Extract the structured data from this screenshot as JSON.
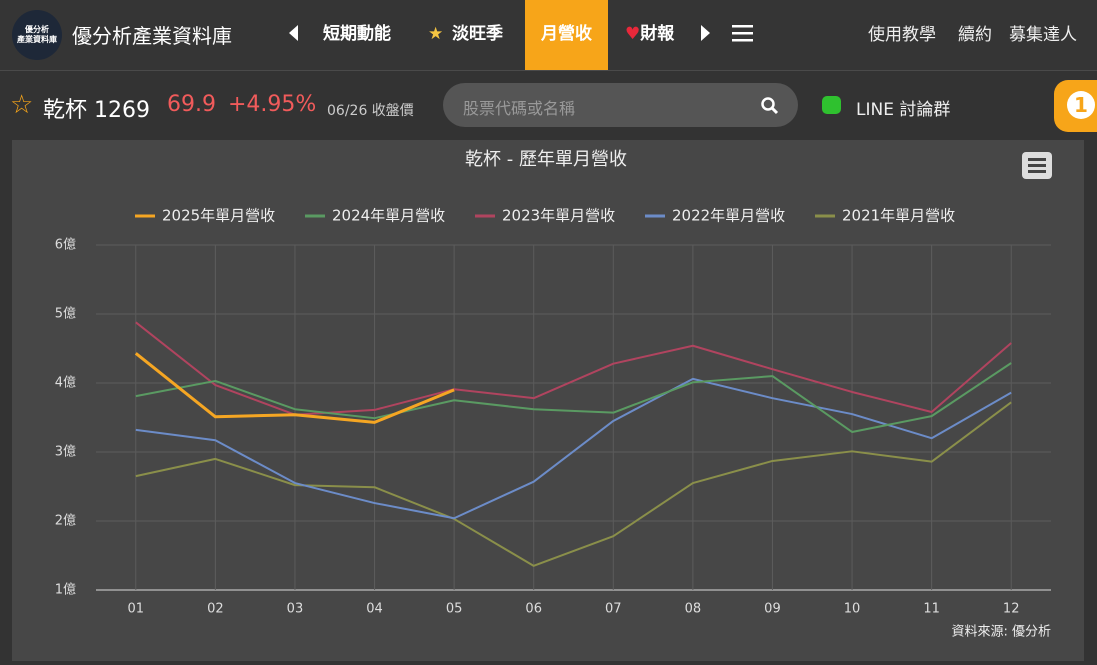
{
  "nav": {
    "brand_logo": "優分析\n產業資料庫",
    "brand": "優分析產業資料庫",
    "tabs": [
      "短期動能",
      "淡旺季",
      "月營收",
      "財報"
    ],
    "links": [
      "使用教學",
      "續約",
      "募集達人"
    ]
  },
  "stock": {
    "name": "乾杯 1269",
    "price": "69.9",
    "change": "+4.95%",
    "date": "06/26 收盤價",
    "search_placeholder": "股票代碼或名稱",
    "line_group": "LINE 討論群",
    "badge": "1"
  },
  "chart_data": {
    "type": "line",
    "title": "乾杯 - 歷年單月營收",
    "categories": [
      "01",
      "02",
      "03",
      "04",
      "05",
      "06",
      "07",
      "08",
      "09",
      "10",
      "11",
      "12"
    ],
    "series": [
      {
        "name": "2025年單月營收",
        "color": "#f5a623",
        "values": [
          4.43,
          3.51,
          3.54,
          3.43,
          3.9,
          null,
          null,
          null,
          null,
          null,
          null,
          null
        ]
      },
      {
        "name": "2024年單月營收",
        "color": "#5a9a62",
        "values": [
          3.81,
          4.03,
          3.62,
          3.49,
          3.75,
          3.62,
          3.57,
          4.01,
          4.1,
          3.29,
          3.52,
          4.29
        ]
      },
      {
        "name": "2023年單月營收",
        "color": "#b0445f",
        "values": [
          4.88,
          3.97,
          3.54,
          3.61,
          3.91,
          3.78,
          4.28,
          4.54,
          4.2,
          3.87,
          3.58,
          4.58
        ]
      },
      {
        "name": "2022年單月營收",
        "color": "#6c8cc8",
        "values": [
          3.32,
          3.17,
          2.55,
          2.26,
          2.04,
          2.57,
          3.45,
          4.06,
          3.78,
          3.55,
          3.2,
          3.86
        ]
      },
      {
        "name": "2021年單月營收",
        "color": "#8a8f4a",
        "values": [
          2.65,
          2.9,
          2.52,
          2.49,
          2.03,
          1.35,
          1.78,
          2.55,
          2.87,
          3.01,
          2.86,
          3.72
        ]
      }
    ],
    "ylim": [
      1,
      6
    ],
    "yticks": [
      {
        "value": 1,
        "label": "1億"
      },
      {
        "value": 2,
        "label": "2億"
      },
      {
        "value": 3,
        "label": "3億"
      },
      {
        "value": 4,
        "label": "4億"
      },
      {
        "value": 5,
        "label": "5億"
      },
      {
        "value": 6,
        "label": "6億"
      }
    ],
    "grid": true,
    "legend": "top",
    "source": "資料來源: 優分析"
  }
}
